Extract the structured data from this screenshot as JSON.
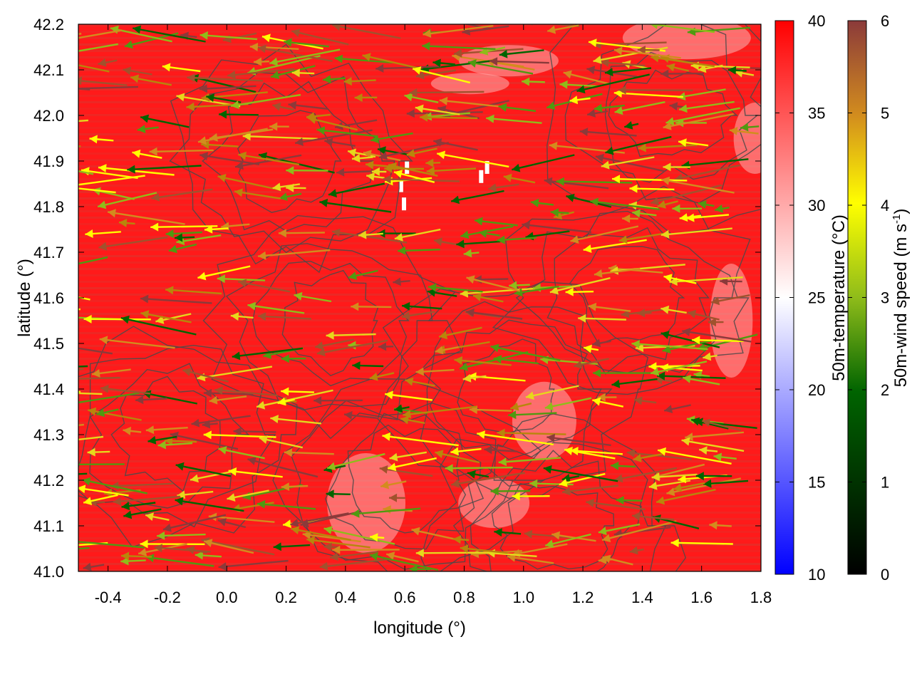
{
  "chart_data": {
    "type": "heatmap",
    "title": "",
    "xlabel": "longitude (°)",
    "ylabel": "latitude (°)",
    "xlim": [
      -0.5,
      1.8
    ],
    "ylim": [
      41.0,
      42.2
    ],
    "x_ticks": [
      "-0.4",
      "-0.2",
      "0.0",
      "0.2",
      "0.4",
      "0.6",
      "0.8",
      "1.0",
      "1.2",
      "1.4",
      "1.6",
      "1.8"
    ],
    "y_ticks": [
      "41.0",
      "41.1",
      "41.2",
      "41.3",
      "41.4",
      "41.5",
      "41.6",
      "41.7",
      "41.8",
      "41.9",
      "42.0",
      "42.1",
      "42.2"
    ],
    "layers": [
      "50m-temperature field (color shading)",
      "50m-wind vectors (arrows)",
      "terrain contours"
    ],
    "temperature_colorbar": {
      "label": "50m-temperature (°C)",
      "range": [
        10,
        40
      ],
      "ticks": [
        "10",
        "15",
        "20",
        "25",
        "30",
        "35",
        "40"
      ],
      "colors": [
        "#0000ff",
        "#ffffff",
        "#ff0000"
      ]
    },
    "wind_colorbar": {
      "label": "50m-wind speed (m s",
      "label_sup": "-1",
      "label_end": ")",
      "range": [
        0,
        6
      ],
      "ticks": [
        "0",
        "1",
        "2",
        "3",
        "4",
        "5",
        "6"
      ],
      "colors": [
        "#000000",
        "#006400",
        "#8fbc1a",
        "#ffff00",
        "#d28c1e",
        "#8b3a3a"
      ]
    },
    "dominant_field_color": "#ff1a1a",
    "contour_color": "#4a4a4a",
    "wind_direction": "predominantly westward (from east)",
    "grid": false
  }
}
